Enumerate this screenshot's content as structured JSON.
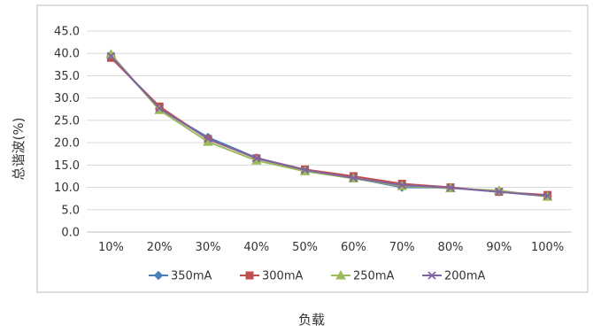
{
  "chart_data": {
    "type": "line",
    "title": "",
    "xlabel": "负载",
    "ylabel": "总谐波(%)",
    "categories": [
      "10%",
      "20%",
      "30%",
      "40%",
      "50%",
      "60%",
      "70%",
      "80%",
      "90%",
      "100%"
    ],
    "ylim": [
      0,
      45
    ],
    "yticks": [
      "0.0",
      "5.0",
      "10.0",
      "15.0",
      "20.0",
      "25.0",
      "30.0",
      "35.0",
      "40.0",
      "45.0"
    ],
    "grid": true,
    "legend_position": "bottom",
    "series": [
      {
        "name": "350mA",
        "color": "#4a7ebb",
        "marker": "diamond",
        "values": [
          39.3,
          27.6,
          21.2,
          16.6,
          13.9,
          12.1,
          10.0,
          9.9,
          9.0,
          8.0
        ]
      },
      {
        "name": "300mA",
        "color": "#c0504d",
        "marker": "square",
        "values": [
          39.0,
          28.1,
          20.8,
          16.5,
          14.0,
          12.5,
          10.8,
          10.0,
          9.0,
          8.3
        ]
      },
      {
        "name": "250mA",
        "color": "#9bbb59",
        "marker": "triangle",
        "values": [
          39.8,
          27.3,
          20.2,
          16.0,
          13.6,
          12.0,
          10.3,
          9.8,
          9.3,
          7.9
        ]
      },
      {
        "name": "200mA",
        "color": "#8064a2",
        "marker": "x",
        "values": [
          39.4,
          27.7,
          20.9,
          16.5,
          13.9,
          12.1,
          10.5,
          9.9,
          9.0,
          8.1
        ]
      }
    ]
  }
}
